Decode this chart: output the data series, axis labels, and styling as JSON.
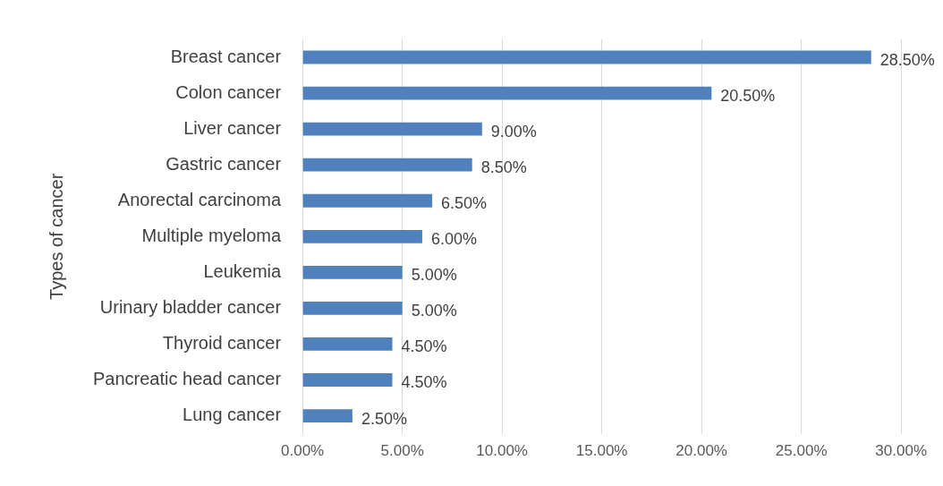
{
  "chart_data": {
    "type": "bar",
    "orientation": "horizontal",
    "ylabel": "Types of cancer",
    "categories": [
      "Breast cancer",
      "Colon cancer",
      "Liver cancer",
      "Gastric cancer",
      "Anorectal carcinoma",
      "Multiple myeloma",
      "Leukemia",
      "Urinary bladder cancer",
      "Thyroid cancer",
      "Pancreatic head cancer",
      "Lung cancer"
    ],
    "values": [
      28.5,
      20.5,
      9,
      8.5,
      6.5,
      6,
      5,
      5,
      4.5,
      4.5,
      2.5
    ],
    "value_labels": [
      "28.50%",
      "20.50%",
      "9.00%",
      "8.50%",
      "6.50%",
      "6.00%",
      "5.00%",
      "5.00%",
      "4.50%",
      "4.50%",
      "2.50%"
    ],
    "color": "#4f81bd",
    "xlim": [
      0,
      30
    ],
    "xticks": [
      {
        "value": 0,
        "label": "0.00%"
      },
      {
        "value": 5,
        "label": "5.00%"
      },
      {
        "value": 10,
        "label": "10.00%"
      },
      {
        "value": 15,
        "label": "15.00%"
      },
      {
        "value": 20,
        "label": "20.00%"
      },
      {
        "value": 25,
        "label": "25.00%"
      },
      {
        "value": 30,
        "label": "30.00%"
      }
    ],
    "grid": "x",
    "legend": false
  }
}
